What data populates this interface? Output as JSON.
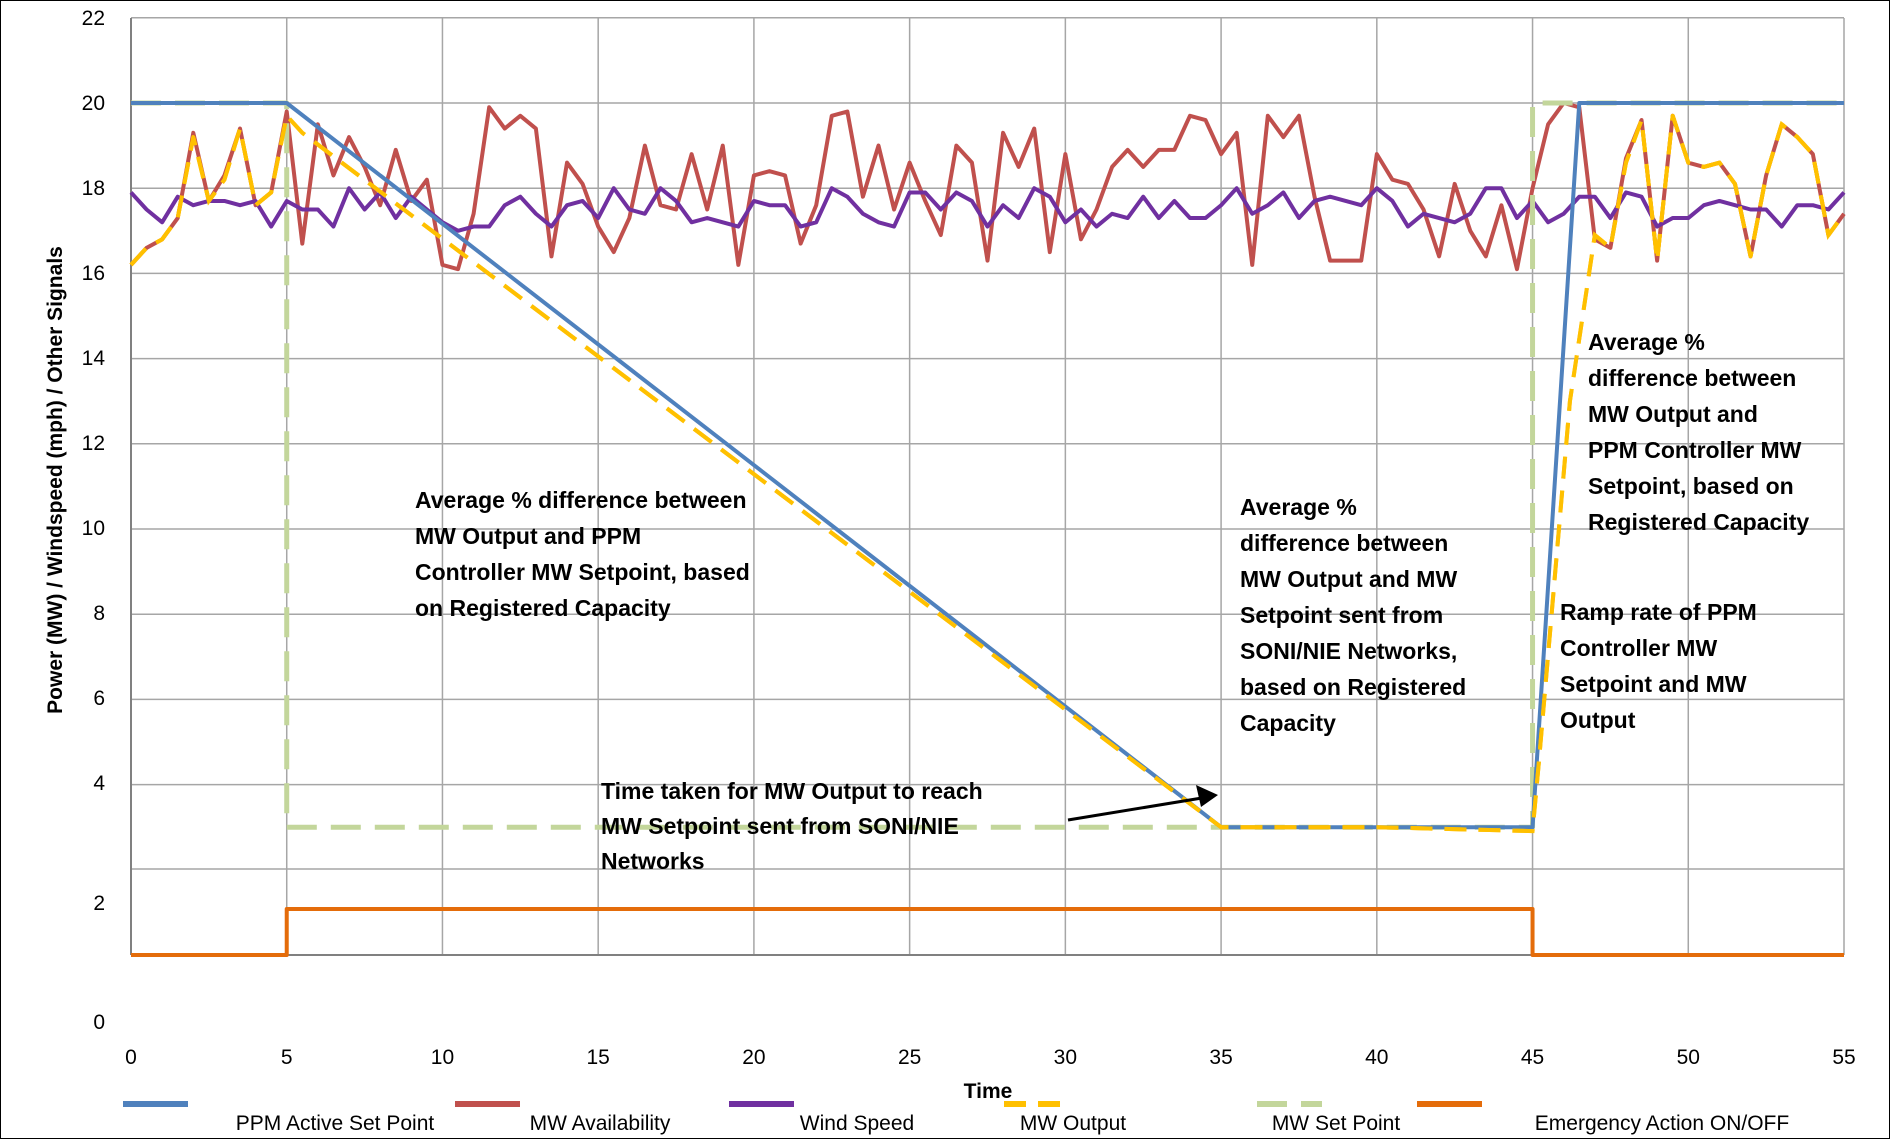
{
  "chart_data": {
    "type": "line",
    "xlabel": "Time",
    "ylabel": "Power (MW) / Windspeed (mph) / Other Signals",
    "xlim": [
      0,
      55
    ],
    "ylim": [
      0,
      22
    ],
    "x_ticks": [
      "0",
      "5",
      "10",
      "15",
      "20",
      "25",
      "30",
      "35",
      "40",
      "45",
      "50",
      "55"
    ],
    "y_ticks": [
      "0",
      "2",
      "4",
      "6",
      "8",
      "10",
      "12",
      "14",
      "16",
      "18",
      "20",
      "22"
    ],
    "grid": true,
    "legend_position": "bottom",
    "series": [
      {
        "name": "PPM Active Set Point",
        "color": "#4F81BD",
        "style": "solid",
        "x": [
          0,
          5,
          35,
          45,
          46.5,
          55
        ],
        "y": [
          20,
          20,
          3,
          3,
          20,
          20
        ]
      },
      {
        "name": "MW Availability",
        "color": "#C0504D",
        "style": "solid",
        "x": [
          0,
          0.5,
          1,
          1.5,
          2,
          2.5,
          3,
          3.5,
          4,
          4.5,
          5,
          5.5,
          6,
          6.5,
          7,
          7.5,
          8,
          8.5,
          9,
          9.5,
          10,
          10.5,
          11,
          11.5,
          12,
          12.5,
          13,
          13.5,
          14,
          14.5,
          15,
          15.5,
          16,
          16.5,
          17,
          17.5,
          18,
          18.5,
          19,
          19.5,
          20,
          20.5,
          21,
          21.5,
          22,
          22.5,
          23,
          23.5,
          24,
          24.5,
          25,
          25.5,
          26,
          26.5,
          27,
          27.5,
          28,
          28.5,
          29,
          29.5,
          30,
          30.5,
          31,
          31.5,
          32,
          32.5,
          33,
          33.5,
          34,
          34.5,
          35,
          35.5,
          36,
          36.5,
          37,
          37.5,
          38,
          38.5,
          39,
          39.5,
          40,
          40.5,
          41,
          41.5,
          42,
          42.5,
          43,
          43.5,
          44,
          44.5,
          45,
          45.5,
          46,
          46.5,
          47,
          47.5,
          48,
          48.5,
          49,
          49.5,
          50,
          50.5,
          51,
          51.5,
          52,
          52.5,
          53,
          53.5,
          54,
          54.5,
          55
        ],
        "y": [
          16.2,
          16.6,
          16.8,
          17.3,
          19.3,
          17.7,
          18.3,
          19.4,
          17.6,
          17.9,
          19.8,
          16.7,
          19.5,
          18.3,
          19.2,
          18.5,
          17.6,
          18.9,
          17.7,
          18.2,
          16.2,
          16.1,
          17.4,
          19.9,
          19.4,
          19.7,
          19.4,
          16.4,
          18.6,
          18.1,
          17.1,
          16.5,
          17.3,
          19.0,
          17.6,
          17.5,
          18.8,
          17.5,
          19.0,
          16.2,
          18.3,
          18.4,
          18.3,
          16.7,
          17.6,
          19.7,
          19.8,
          17.8,
          19.0,
          17.5,
          18.6,
          17.7,
          16.9,
          19.0,
          18.6,
          16.3,
          19.3,
          18.5,
          19.4,
          16.5,
          18.8,
          16.8,
          17.5,
          18.5,
          18.9,
          18.5,
          18.9,
          18.9,
          19.7,
          19.6,
          18.8,
          19.3,
          16.2,
          19.7,
          19.2,
          19.7,
          17.8,
          16.3,
          16.3,
          16.3,
          18.8,
          18.2,
          18.1,
          17.5,
          16.4,
          18.1,
          17.0,
          16.4,
          17.6,
          16.1,
          18.0,
          19.5,
          20.0,
          19.9,
          16.8,
          16.6,
          18.7,
          19.6,
          16.3,
          19.7,
          18.6,
          18.5,
          18.6,
          18.1,
          16.4,
          18.3,
          19.5,
          19.2,
          18.8,
          16.9,
          17.4
        ]
      },
      {
        "name": "Wind Speed",
        "color": "#7030A0",
        "style": "solid",
        "x": [
          0,
          0.5,
          1,
          1.5,
          2,
          2.5,
          3,
          3.5,
          4,
          4.5,
          5,
          5.5,
          6,
          6.5,
          7,
          7.5,
          8,
          8.5,
          9,
          9.5,
          10,
          10.5,
          11,
          11.5,
          12,
          12.5,
          13,
          13.5,
          14,
          14.5,
          15,
          15.5,
          16,
          16.5,
          17,
          17.5,
          18,
          18.5,
          19,
          19.5,
          20,
          20.5,
          21,
          21.5,
          22,
          22.5,
          23,
          23.5,
          24,
          24.5,
          25,
          25.5,
          26,
          26.5,
          27,
          27.5,
          28,
          28.5,
          29,
          29.5,
          30,
          30.5,
          31,
          31.5,
          32,
          32.5,
          33,
          33.5,
          34,
          34.5,
          35,
          35.5,
          36,
          36.5,
          37,
          37.5,
          38,
          38.5,
          39,
          39.5,
          40,
          40.5,
          41,
          41.5,
          42,
          42.5,
          43,
          43.5,
          44,
          44.5,
          45,
          45.5,
          46,
          46.5,
          47,
          47.5,
          48,
          48.5,
          49,
          49.5,
          50,
          50.5,
          51,
          51.5,
          52,
          52.5,
          53,
          53.5,
          54,
          54.5,
          55
        ],
        "y": [
          17.9,
          17.5,
          17.2,
          17.8,
          17.6,
          17.7,
          17.7,
          17.6,
          17.7,
          17.1,
          17.7,
          17.5,
          17.5,
          17.1,
          18.0,
          17.5,
          17.9,
          17.3,
          17.8,
          17.5,
          17.2,
          17.0,
          17.1,
          17.1,
          17.6,
          17.8,
          17.4,
          17.1,
          17.6,
          17.7,
          17.3,
          18.0,
          17.5,
          17.4,
          18.0,
          17.7,
          17.2,
          17.3,
          17.2,
          17.1,
          17.7,
          17.6,
          17.6,
          17.1,
          17.2,
          18.0,
          17.8,
          17.4,
          17.2,
          17.1,
          17.9,
          17.9,
          17.5,
          17.9,
          17.7,
          17.1,
          17.6,
          17.3,
          18.0,
          17.8,
          17.2,
          17.5,
          17.1,
          17.4,
          17.3,
          17.8,
          17.3,
          17.7,
          17.3,
          17.3,
          17.6,
          18.0,
          17.4,
          17.6,
          17.9,
          17.3,
          17.7,
          17.8,
          17.7,
          17.6,
          18.0,
          17.7,
          17.1,
          17.4,
          17.3,
          17.2,
          17.4,
          18.0,
          18.0,
          17.3,
          17.7,
          17.2,
          17.4,
          17.8,
          17.8,
          17.3,
          17.9,
          17.8,
          17.1,
          17.3,
          17.3,
          17.6,
          17.7,
          17.6,
          17.5,
          17.5,
          17.1,
          17.6,
          17.6,
          17.5,
          17.9
        ]
      },
      {
        "name": "MW Output",
        "color": "#FFC000",
        "style": "dashed",
        "x": [
          0,
          0.5,
          1,
          1.5,
          2,
          2.5,
          3,
          3.5,
          4,
          4.5,
          5,
          5.5,
          35,
          40,
          45,
          45.2,
          46.2,
          47,
          47.5,
          48,
          48.5,
          49,
          49.5,
          50,
          50.5,
          51,
          51.5,
          52,
          52.5,
          53,
          53.5,
          54,
          54.5,
          55
        ],
        "y": [
          16.2,
          16.6,
          16.8,
          17.3,
          19.2,
          17.7,
          18.2,
          19.4,
          17.6,
          17.9,
          19.7,
          19.3,
          3.0,
          3.0,
          2.9,
          4.5,
          13.0,
          16.9,
          16.6,
          18.6,
          19.6,
          16.3,
          19.7,
          18.6,
          18.5,
          18.6,
          18.1,
          16.4,
          18.3,
          19.5,
          19.2,
          18.8,
          16.9,
          17.4
        ]
      },
      {
        "name": "MW Set Point",
        "color": "#C3D69B",
        "style": "dash-dot",
        "x": [
          0,
          5,
          5,
          45,
          45,
          55
        ],
        "y": [
          20,
          20,
          3,
          3,
          20,
          20
        ]
      },
      {
        "name": "Emergency Action ON/OFF",
        "color": "#E46C0A",
        "style": "solid",
        "x": [
          0,
          5,
          5,
          45,
          45,
          55
        ],
        "y": [
          0,
          0,
          1,
          1,
          0,
          0
        ]
      }
    ],
    "annotations": [
      {
        "lines": [
          "Average % difference between",
          "MW Output and PPM",
          "Controller MW Setpoint, based",
          "on Registered Capacity"
        ]
      },
      {
        "lines": [
          "Average  %",
          "difference between",
          "MW Output and MW",
          "Setpoint sent from",
          "SONI/NIE Networks,",
          "based on Registered",
          "Capacity"
        ]
      },
      {
        "lines": [
          "Average %",
          "difference between",
          "MW Output and",
          "PPM Controller MW",
          "Setpoint, based on",
          "Registered Capacity"
        ]
      },
      {
        "lines": [
          "Ramp rate of PPM",
          "Controller MW",
          "Setpoint and MW",
          "Output"
        ]
      },
      {
        "lines": [
          "Time taken for MW Output to reach",
          "MW Setpoint sent from SONI/NIE",
          "Networks"
        ]
      }
    ]
  }
}
